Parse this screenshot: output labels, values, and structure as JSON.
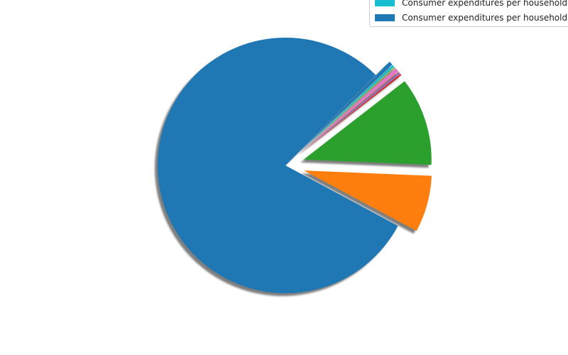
{
  "chart_data": {
    "type": "pie",
    "title": "",
    "start_angle_deg": 45,
    "counterclock": true,
    "shadow": true,
    "slices": [
      {
        "value": 79.9,
        "color": "#1f77b4",
        "explode": 0.0
      },
      {
        "value": 7.2,
        "color": "#ff7f0e",
        "explode": 0.15
      },
      {
        "value": 11.2,
        "color": "#2ca02c",
        "explode": 0.15
      },
      {
        "value": 0.2,
        "color": "#d62728",
        "explode": 0.15
      },
      {
        "value": 0.2,
        "color": "#9467bd",
        "explode": 0.15
      },
      {
        "value": 0.1,
        "color": "#8c564b",
        "explode": 0.15
      },
      {
        "value": 0.5,
        "color": "#e377c2",
        "explode": 0.15
      },
      {
        "value": 0.1,
        "color": "#7f7f7f",
        "explode": 0.15
      },
      {
        "value": 0.1,
        "color": "#bcbd22",
        "explode": 0.15
      },
      {
        "value": 0.3,
        "color": "#17becf",
        "explode": 0.15
      },
      {
        "value": 0.5,
        "color": "#1f77b4",
        "explode": 0.15
      }
    ],
    "legend": {
      "placement": "upper-right",
      "entries": [
        {
          "label": "Consumer expenditures per household",
          "color": "#17becf"
        },
        {
          "label": "Consumer expenditures per household",
          "color": "#1f77b4"
        }
      ]
    }
  }
}
